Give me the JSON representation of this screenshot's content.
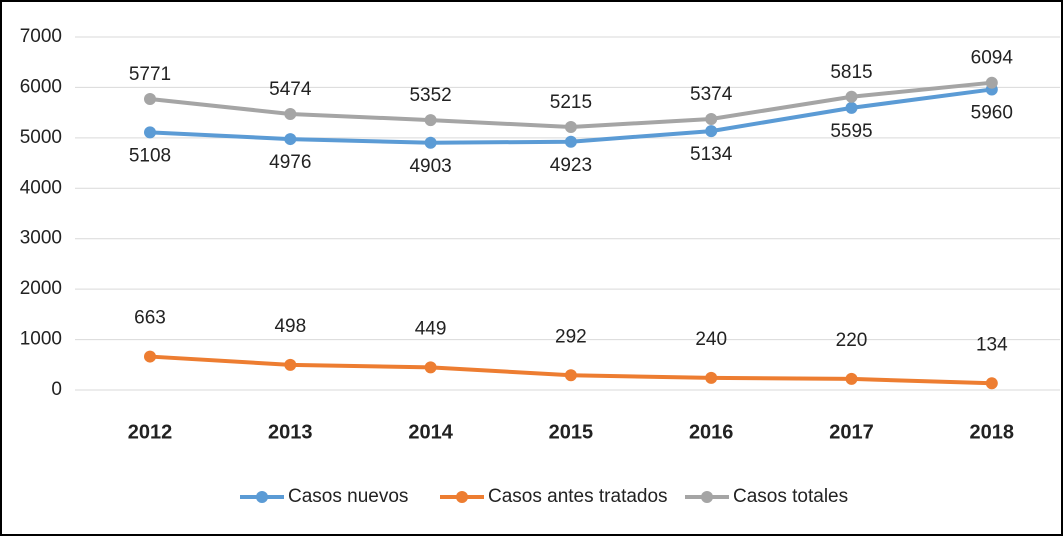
{
  "chart_data": {
    "type": "line",
    "categories": [
      "2012",
      "2013",
      "2014",
      "2015",
      "2016",
      "2017",
      "2018"
    ],
    "series": [
      {
        "name": "Casos nuevos",
        "color": "#5b9bd5",
        "values": [
          5108,
          4976,
          4903,
          4923,
          5134,
          5595,
          5960
        ]
      },
      {
        "name": "Casos antes tratados",
        "color": "#ed7d31",
        "values": [
          663,
          498,
          449,
          292,
          240,
          220,
          134
        ]
      },
      {
        "name": "Casos totales",
        "color": "#a5a5a5",
        "values": [
          5771,
          5474,
          5352,
          5215,
          5374,
          5815,
          6094
        ]
      }
    ],
    "ylim": [
      0,
      7000
    ],
    "yticks": [
      0,
      1000,
      2000,
      3000,
      4000,
      5000,
      6000,
      7000
    ],
    "grid": true,
    "legend": "bottom"
  }
}
